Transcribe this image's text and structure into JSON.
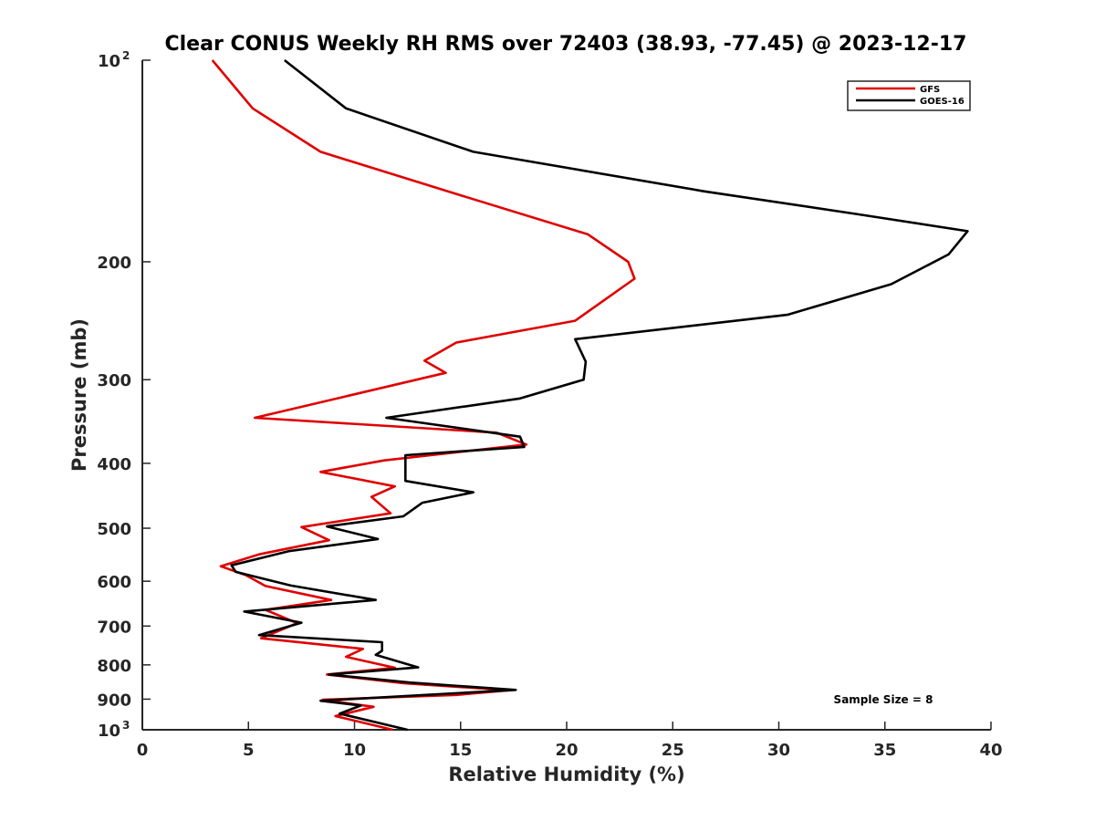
{
  "chart_data": {
    "type": "line",
    "title": "Clear CONUS Weekly RH RMS over 72403 (38.93, -77.45) @ 2023-12-17",
    "xlabel": "Relative Humidity (%)",
    "ylabel": "Pressure (mb)",
    "xlim": [
      0,
      40
    ],
    "ylim": [
      100,
      1000
    ],
    "y_scale": "log",
    "y_reversed": true,
    "grid": false,
    "legend_position": "top-right",
    "x_ticks": [
      0,
      5,
      10,
      15,
      20,
      25,
      30,
      35,
      40
    ],
    "y_ticks": [
      {
        "value": 100,
        "base": "10",
        "exp": "2"
      },
      {
        "value": 200,
        "label": "200"
      },
      {
        "value": 300,
        "label": "300"
      },
      {
        "value": 400,
        "label": "400"
      },
      {
        "value": 500,
        "label": "500"
      },
      {
        "value": 600,
        "label": "600"
      },
      {
        "value": 700,
        "label": "700"
      },
      {
        "value": 800,
        "label": "800"
      },
      {
        "value": 900,
        "label": "900"
      },
      {
        "value": 1000,
        "base": "10",
        "exp": "3"
      }
    ],
    "annotation": "Sample Size = 8",
    "series": [
      {
        "name": "GFS",
        "color": "#e00000",
        "points": [
          [
            3.3,
            100
          ],
          [
            5.2,
            118
          ],
          [
            8.4,
            137
          ],
          [
            14.4,
            157
          ],
          [
            21.0,
            182
          ],
          [
            22.9,
            200
          ],
          [
            23.2,
            212
          ],
          [
            20.4,
            245
          ],
          [
            14.8,
            264
          ],
          [
            13.3,
            281
          ],
          [
            14.3,
            293
          ],
          [
            5.3,
            342
          ],
          [
            16.7,
            360
          ],
          [
            18.1,
            375
          ],
          [
            11.4,
            396
          ],
          [
            8.4,
            412
          ],
          [
            11.9,
            433
          ],
          [
            10.8,
            449
          ],
          [
            11.7,
            475
          ],
          [
            7.5,
            498
          ],
          [
            8.8,
            521
          ],
          [
            5.5,
            547
          ],
          [
            3.7,
            570
          ],
          [
            4.9,
            588
          ],
          [
            5.8,
            610
          ],
          [
            8.9,
            640
          ],
          [
            5.8,
            662
          ],
          [
            7.3,
            693
          ],
          [
            5.6,
            730
          ],
          [
            10.4,
            757
          ],
          [
            9.6,
            778
          ],
          [
            11.9,
            808
          ],
          [
            8.7,
            827
          ],
          [
            12.3,
            852
          ],
          [
            17.3,
            873
          ],
          [
            14.8,
            887
          ],
          [
            8.5,
            902
          ],
          [
            10.9,
            924
          ],
          [
            9.1,
            954
          ],
          [
            11.8,
            1000
          ]
        ]
      },
      {
        "name": "GOES-16",
        "color": "#000000",
        "points": [
          [
            6.7,
            100
          ],
          [
            9.6,
            118
          ],
          [
            15.6,
            137
          ],
          [
            26.5,
            157
          ],
          [
            33.8,
            170
          ],
          [
            38.9,
            180
          ],
          [
            38.0,
            195
          ],
          [
            35.3,
            216
          ],
          [
            30.4,
            240
          ],
          [
            20.4,
            261
          ],
          [
            20.9,
            282
          ],
          [
            20.8,
            300
          ],
          [
            17.8,
            320
          ],
          [
            11.5,
            342
          ],
          [
            17.8,
            365
          ],
          [
            18.0,
            378
          ],
          [
            12.4,
            389
          ],
          [
            12.4,
            425
          ],
          [
            15.6,
            442
          ],
          [
            13.2,
            458
          ],
          [
            12.3,
            480
          ],
          [
            8.7,
            497
          ],
          [
            11.1,
            519
          ],
          [
            6.9,
            541
          ],
          [
            4.2,
            568
          ],
          [
            4.4,
            581
          ],
          [
            7.0,
            609
          ],
          [
            11.0,
            640
          ],
          [
            4.8,
            666
          ],
          [
            7.5,
            692
          ],
          [
            5.5,
            722
          ],
          [
            11.3,
            740
          ],
          [
            11.3,
            762
          ],
          [
            11.0,
            773
          ],
          [
            13.0,
            807
          ],
          [
            8.8,
            827
          ],
          [
            12.6,
            850
          ],
          [
            17.6,
            872
          ],
          [
            8.4,
            905
          ],
          [
            10.3,
            920
          ],
          [
            9.3,
            946
          ],
          [
            12.5,
            1000
          ]
        ]
      }
    ]
  }
}
